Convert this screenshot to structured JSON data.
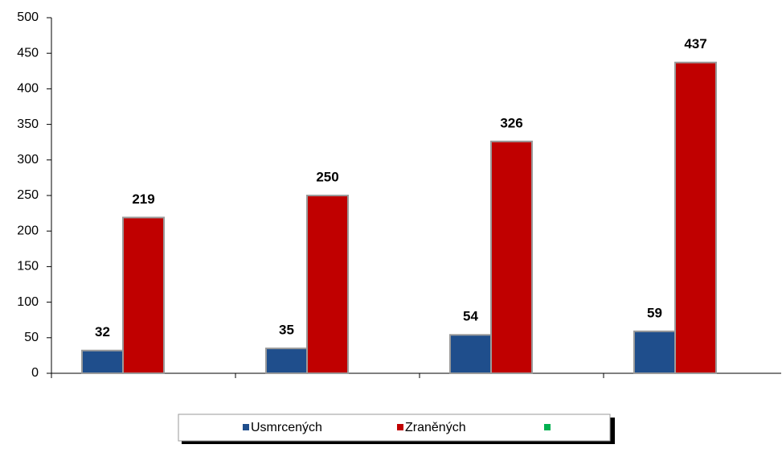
{
  "chart_data": {
    "type": "bar",
    "categories": [
      null,
      null,
      null,
      null
    ],
    "series": [
      {
        "name": "Usmrcených",
        "color": "#1f4e8c",
        "values": [
          32,
          35,
          54,
          59
        ]
      },
      {
        "name": "Zraněných",
        "color": "#c00000",
        "values": [
          219,
          250,
          326,
          437
        ]
      },
      {
        "name": null,
        "color": "#00b050",
        "values": [
          null,
          null,
          null,
          null
        ]
      }
    ],
    "ylim": [
      0,
      500
    ],
    "yticks": [
      0,
      50,
      100,
      150,
      200,
      250,
      300,
      350,
      400,
      450,
      500
    ],
    "legend": "bottom"
  }
}
